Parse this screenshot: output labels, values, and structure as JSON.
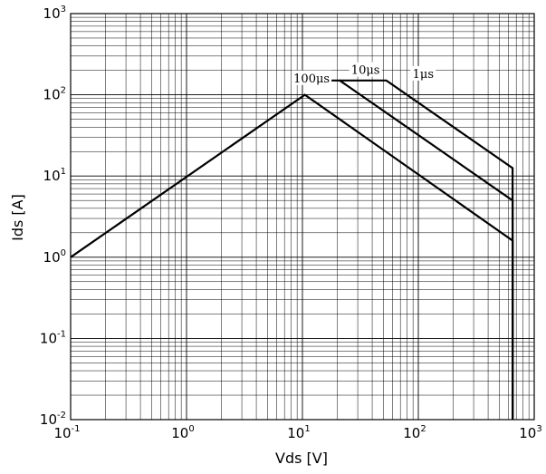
{
  "chart_data": {
    "type": "line",
    "title": "",
    "xlabel": "Vds [V]",
    "ylabel": "Ids [A]",
    "xscale": "log",
    "yscale": "log",
    "xlim": [
      0.1,
      1000
    ],
    "ylim": [
      0.01,
      1000
    ],
    "grid": "major and minor",
    "x_ticks": [
      {
        "base": "10",
        "exp": "-1",
        "value": 0.1
      },
      {
        "base": "10",
        "exp": "0",
        "value": 1
      },
      {
        "base": "10",
        "exp": "1",
        "value": 10
      },
      {
        "base": "10",
        "exp": "2",
        "value": 100
      },
      {
        "base": "10",
        "exp": "3",
        "value": 1000
      }
    ],
    "y_ticks": [
      {
        "base": "10",
        "exp": "-2",
        "value": 0.01
      },
      {
        "base": "10",
        "exp": "-1",
        "value": 0.1
      },
      {
        "base": "10",
        "exp": "0",
        "value": 1
      },
      {
        "base": "10",
        "exp": "1",
        "value": 10
      },
      {
        "base": "10",
        "exp": "2",
        "value": 100
      },
      {
        "base": "10",
        "exp": "3",
        "value": 1000
      }
    ],
    "line_color": "#000000",
    "series": [
      {
        "x": [
          0.1,
          10.5,
          650,
          650
        ],
        "y": [
          1.0,
          100,
          1.6,
          0.01
        ]
      },
      {
        "x": [
          15.5,
          21,
          650,
          650
        ],
        "y": [
          150,
          150,
          5,
          0.01
        ]
      },
      {
        "x": [
          21,
          53,
          650,
          650
        ],
        "y": [
          150,
          150,
          12.5,
          0.01
        ]
      }
    ],
    "annotations": [
      {
        "text": "100μs",
        "x": 12,
        "y": 150
      },
      {
        "text": "10μs",
        "x": 35,
        "y": 190
      },
      {
        "text": "1μs",
        "x": 110,
        "y": 170
      }
    ]
  }
}
